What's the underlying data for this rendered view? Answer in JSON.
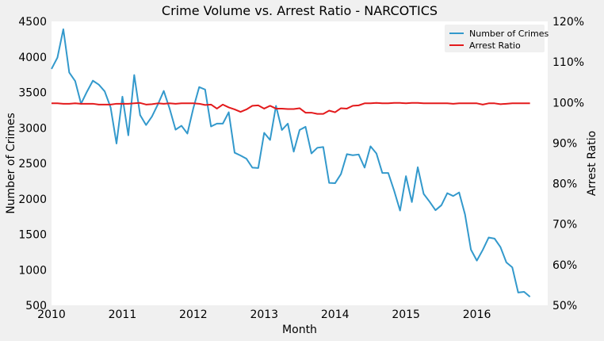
{
  "chart_data": {
    "type": "line",
    "title": "Crime Volume vs. Arrest Ratio - NARCOTICS",
    "xlabel": "Month",
    "ylabel_left": "Number of Crimes",
    "ylabel_right": "Arrest Ratio",
    "x_ticks": [
      "2010",
      "2011",
      "2012",
      "2013",
      "2014",
      "2015",
      "2016"
    ],
    "y_left_ticks": [
      "500",
      "1000",
      "1500",
      "2000",
      "2500",
      "3000",
      "3500",
      "4000",
      "4500"
    ],
    "y_right_ticks": [
      "50%",
      "60%",
      "70%",
      "80%",
      "90%",
      "100%",
      "110%",
      "120%"
    ],
    "ylim_left": [
      500,
      4500
    ],
    "ylim_right": [
      0.5,
      1.2
    ],
    "x_start": "2010-01",
    "legend_position": "top-right",
    "grid": false,
    "series": [
      {
        "name": "Number of Crimes",
        "axis": "left",
        "color": "#3399cc",
        "values": [
          3830,
          3990,
          4390,
          3780,
          3660,
          3340,
          3510,
          3665,
          3610,
          3515,
          3290,
          2780,
          3440,
          2895,
          3745,
          3180,
          3040,
          3160,
          3330,
          3520,
          3270,
          2975,
          3030,
          2920,
          3275,
          3575,
          3540,
          3020,
          3060,
          3060,
          3220,
          2650,
          2610,
          2565,
          2440,
          2435,
          2930,
          2830,
          3310,
          2970,
          3060,
          2665,
          2970,
          3015,
          2640,
          2720,
          2730,
          2225,
          2220,
          2350,
          2630,
          2615,
          2625,
          2440,
          2740,
          2640,
          2365,
          2365,
          2115,
          1835,
          2320,
          1955,
          2445,
          2070,
          1960,
          1840,
          1910,
          2080,
          2040,
          2090,
          1780,
          1285,
          1130,
          1280,
          1455,
          1440,
          1320,
          1105,
          1035,
          680,
          690,
          620
        ]
      },
      {
        "name": "Arrest Ratio",
        "axis": "right",
        "color": "#e31a1c",
        "values": [
          0.998,
          0.998,
          0.997,
          0.997,
          0.998,
          0.997,
          0.997,
          0.997,
          0.995,
          0.995,
          0.995,
          0.997,
          0.997,
          0.997,
          0.998,
          0.999,
          0.995,
          0.996,
          0.998,
          0.997,
          0.998,
          0.997,
          0.998,
          0.998,
          0.998,
          0.997,
          0.994,
          0.995,
          0.985,
          0.995,
          0.988,
          0.983,
          0.977,
          0.983,
          0.992,
          0.993,
          0.985,
          0.992,
          0.985,
          0.985,
          0.984,
          0.984,
          0.986,
          0.975,
          0.975,
          0.972,
          0.972,
          0.98,
          0.976,
          0.986,
          0.985,
          0.992,
          0.993,
          0.998,
          0.998,
          0.999,
          0.998,
          0.998,
          0.999,
          0.999,
          0.998,
          0.999,
          0.999,
          0.998,
          0.998,
          0.998,
          0.998,
          0.998,
          0.997,
          0.998,
          0.998,
          0.998,
          0.998,
          0.995,
          0.998,
          0.998,
          0.996,
          0.997,
          0.998,
          0.998,
          0.998,
          0.998
        ]
      }
    ]
  }
}
